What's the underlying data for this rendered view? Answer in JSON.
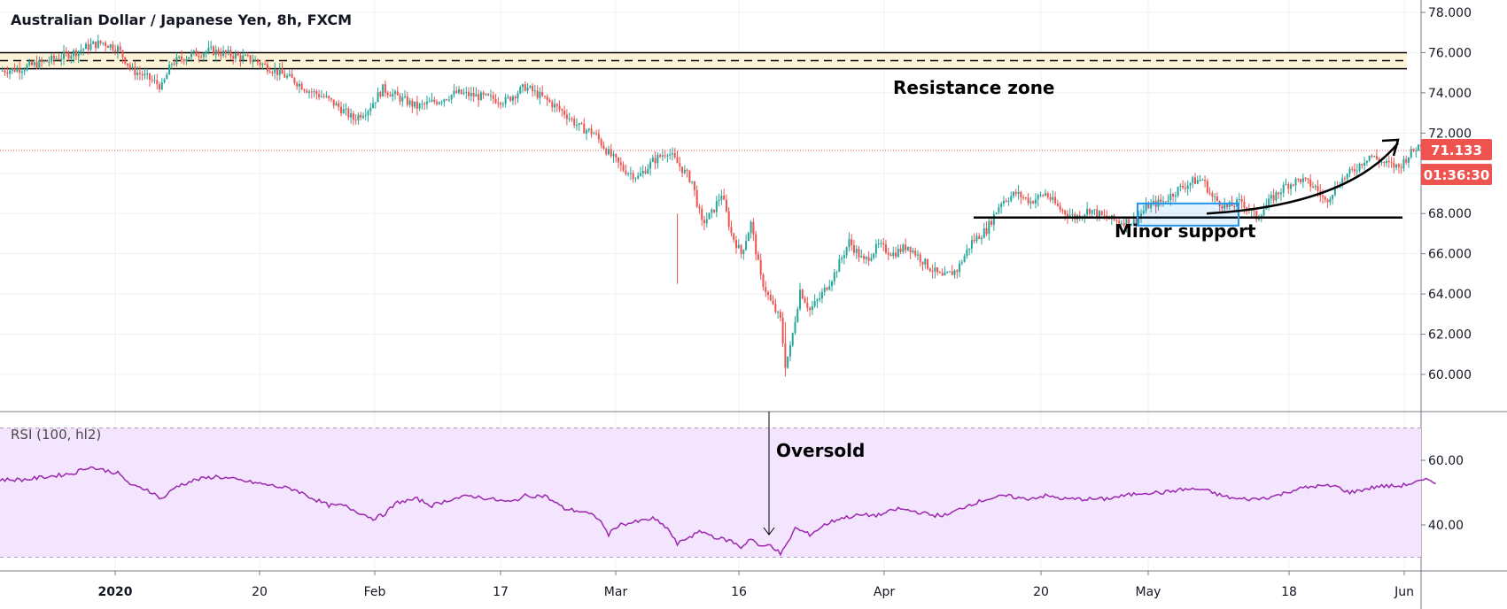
{
  "header": {
    "title": "Australian Dollar / Japanese Yen, 8h, FXCM"
  },
  "chart_data": [
    {
      "type": "candlestick",
      "title": "Australian Dollar / Japanese Yen, 8h, FXCM",
      "ylim": [
        58.6,
        78.4
      ],
      "y_ticks": [
        "78.000",
        "76.000",
        "74.000",
        "72.000",
        "70.000",
        "68.000",
        "66.000",
        "64.000",
        "62.000",
        "60.000"
      ],
      "x_ticks": [
        "2020",
        "20",
        "Feb",
        "17",
        "Mar",
        "16",
        "Apr",
        "20",
        "May",
        "18",
        "Jun"
      ],
      "close_path": [
        [
          0,
          75.1
        ],
        [
          8,
          75.2
        ],
        [
          20,
          75.6
        ],
        [
          30,
          76.0
        ],
        [
          38,
          76.4
        ],
        [
          42,
          76.5
        ],
        [
          48,
          76.2
        ],
        [
          54,
          75.1
        ],
        [
          58,
          74.9
        ],
        [
          62,
          74.6
        ],
        [
          66,
          74.3
        ],
        [
          70,
          75.5
        ],
        [
          78,
          75.9
        ],
        [
          86,
          76.1
        ],
        [
          94,
          75.9
        ],
        [
          104,
          75.6
        ],
        [
          112,
          75.1
        ],
        [
          120,
          74.6
        ],
        [
          126,
          74.1
        ],
        [
          132,
          73.8
        ],
        [
          138,
          73.3
        ],
        [
          144,
          72.7
        ],
        [
          150,
          73.2
        ],
        [
          156,
          74.2
        ],
        [
          162,
          73.8
        ],
        [
          170,
          73.3
        ],
        [
          178,
          73.6
        ],
        [
          186,
          74.0
        ],
        [
          196,
          73.8
        ],
        [
          206,
          73.6
        ],
        [
          214,
          74.3
        ],
        [
          222,
          73.7
        ],
        [
          230,
          73.0
        ],
        [
          236,
          72.3
        ],
        [
          242,
          72.0
        ],
        [
          248,
          71.0
        ],
        [
          254,
          70.2
        ],
        [
          260,
          69.8
        ],
        [
          266,
          70.6
        ],
        [
          272,
          71.1
        ],
        [
          278,
          70.2
        ],
        [
          282,
          69.6
        ],
        [
          286,
          67.5
        ],
        [
          290,
          68.0
        ],
        [
          294,
          69.0
        ],
        [
          298,
          67.0
        ],
        [
          302,
          66.0
        ],
        [
          306,
          67.5
        ],
        [
          310,
          64.8
        ],
        [
          314,
          63.6
        ],
        [
          318,
          62.7
        ],
        [
          320,
          60.5
        ],
        [
          322,
          61.3
        ],
        [
          326,
          64.2
        ],
        [
          330,
          63.2
        ],
        [
          334,
          63.8
        ],
        [
          340,
          65.0
        ],
        [
          346,
          66.6
        ],
        [
          352,
          65.6
        ],
        [
          358,
          66.4
        ],
        [
          364,
          66.0
        ],
        [
          370,
          66.4
        ],
        [
          378,
          65.4
        ],
        [
          384,
          64.8
        ],
        [
          390,
          65.2
        ],
        [
          396,
          66.6
        ],
        [
          402,
          67.2
        ],
        [
          408,
          68.6
        ],
        [
          414,
          69.0
        ],
        [
          420,
          68.6
        ],
        [
          426,
          69.0
        ],
        [
          432,
          68.2
        ],
        [
          438,
          67.8
        ],
        [
          444,
          68.2
        ],
        [
          450,
          67.8
        ],
        [
          456,
          67.6
        ],
        [
          462,
          67.6
        ],
        [
          468,
          68.4
        ],
        [
          474,
          68.6
        ],
        [
          480,
          69.2
        ],
        [
          486,
          69.6
        ],
        [
          490,
          69.7
        ],
        [
          494,
          68.8
        ],
        [
          500,
          68.3
        ],
        [
          506,
          68.6
        ],
        [
          512,
          67.8
        ],
        [
          518,
          68.7
        ],
        [
          524,
          69.4
        ],
        [
          530,
          69.7
        ],
        [
          536,
          69.3
        ],
        [
          540,
          68.6
        ],
        [
          546,
          69.6
        ],
        [
          552,
          70.2
        ],
        [
          558,
          70.9
        ],
        [
          564,
          70.5
        ],
        [
          570,
          70.3
        ],
        [
          574,
          70.9
        ],
        [
          580,
          71.6
        ],
        [
          584,
          71.2
        ]
      ],
      "last_price": "71.133",
      "countdown": "01:36:30",
      "annotations": {
        "resistance": "Resistance zone",
        "support": "Minor support"
      }
    },
    {
      "type": "line",
      "title": "RSI (100, hl2)",
      "ylim": [
        27,
        71
      ],
      "y_ticks": [
        "60.00",
        "40.00"
      ],
      "bands": [
        30,
        70
      ],
      "values": [
        [
          0,
          54
        ],
        [
          10,
          54
        ],
        [
          20,
          55
        ],
        [
          30,
          56
        ],
        [
          36,
          58
        ],
        [
          42,
          57
        ],
        [
          48,
          56
        ],
        [
          54,
          52
        ],
        [
          60,
          51
        ],
        [
          66,
          48
        ],
        [
          72,
          52
        ],
        [
          80,
          54
        ],
        [
          88,
          55
        ],
        [
          96,
          54
        ],
        [
          104,
          53
        ],
        [
          112,
          52
        ],
        [
          120,
          51
        ],
        [
          128,
          48
        ],
        [
          134,
          46
        ],
        [
          140,
          46
        ],
        [
          146,
          44
        ],
        [
          152,
          42
        ],
        [
          156,
          43
        ],
        [
          162,
          47
        ],
        [
          170,
          48
        ],
        [
          176,
          46
        ],
        [
          184,
          48
        ],
        [
          192,
          49
        ],
        [
          200,
          48
        ],
        [
          208,
          47
        ],
        [
          214,
          49
        ],
        [
          222,
          49
        ],
        [
          230,
          45
        ],
        [
          238,
          44
        ],
        [
          244,
          42
        ],
        [
          248,
          37
        ],
        [
          252,
          40
        ],
        [
          260,
          41
        ],
        [
          266,
          42
        ],
        [
          272,
          39
        ],
        [
          276,
          34
        ],
        [
          280,
          36
        ],
        [
          286,
          38
        ],
        [
          292,
          36
        ],
        [
          298,
          35
        ],
        [
          302,
          33
        ],
        [
          306,
          36
        ],
        [
          310,
          33
        ],
        [
          314,
          34
        ],
        [
          318,
          31
        ],
        [
          320,
          33
        ],
        [
          324,
          39
        ],
        [
          330,
          37
        ],
        [
          336,
          40
        ],
        [
          342,
          42
        ],
        [
          350,
          43
        ],
        [
          358,
          43
        ],
        [
          366,
          45
        ],
        [
          374,
          44
        ],
        [
          380,
          43
        ],
        [
          386,
          43
        ],
        [
          394,
          46
        ],
        [
          402,
          48
        ],
        [
          410,
          49
        ],
        [
          418,
          48
        ],
        [
          426,
          49
        ],
        [
          434,
          48
        ],
        [
          442,
          48
        ],
        [
          450,
          48
        ],
        [
          458,
          49
        ],
        [
          466,
          50
        ],
        [
          474,
          50
        ],
        [
          482,
          51
        ],
        [
          490,
          51
        ],
        [
          498,
          49
        ],
        [
          504,
          48
        ],
        [
          512,
          48
        ],
        [
          520,
          49
        ],
        [
          528,
          51
        ],
        [
          536,
          52
        ],
        [
          544,
          52
        ],
        [
          550,
          50
        ],
        [
          556,
          51
        ],
        [
          562,
          52
        ],
        [
          570,
          52
        ],
        [
          576,
          53
        ],
        [
          582,
          54
        ],
        [
          586,
          53
        ]
      ],
      "annotation": "Oversold"
    }
  ],
  "colors": {
    "up": "#26a69a",
    "down": "#ef5350",
    "rsi_line": "#9c27b0",
    "rsi_band": "#f3e5fd",
    "resistance_fill": "#fdf3d6",
    "support_box": "#2196f3",
    "last_price_badge": "#ef5350",
    "grid": "#eef0f3"
  }
}
